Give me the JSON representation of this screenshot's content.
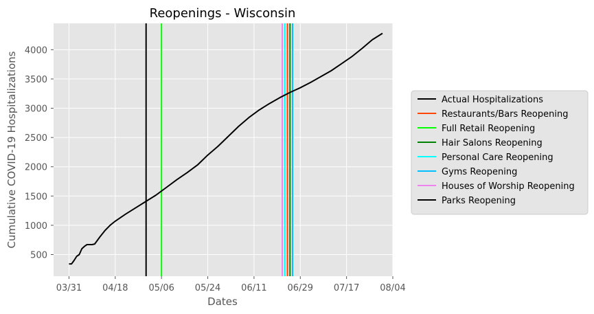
{
  "chart_data": {
    "type": "line",
    "title": "Reopenings - Wisconsin",
    "xlabel": "Dates",
    "ylabel": "Cumulative COVID-19 Hospitalizations",
    "x_ticks": [
      "03/31",
      "04/18",
      "05/06",
      "05/24",
      "06/11",
      "06/29",
      "07/17",
      "08/04"
    ],
    "y_ticks": [
      500,
      1000,
      1500,
      2000,
      2500,
      3000,
      3500,
      4000
    ],
    "xlim": [
      "03/25",
      "08/04"
    ],
    "ylim": [
      130,
      4450
    ],
    "grid": true,
    "background": "#e5e5e5",
    "legend_position": "outside-right",
    "series": [
      {
        "name": "Actual Hospitalizations",
        "color": "#000000",
        "x": [
          "03/31",
          "04/01",
          "04/02",
          "04/03",
          "04/04",
          "04/05",
          "04/06",
          "04/07",
          "04/08",
          "04/09",
          "04/10",
          "04/12",
          "04/14",
          "04/16",
          "04/18",
          "04/22",
          "04/26",
          "04/30",
          "05/04",
          "05/08",
          "05/12",
          "05/16",
          "05/20",
          "05/24",
          "05/28",
          "06/01",
          "06/05",
          "06/09",
          "06/13",
          "06/17",
          "06/21",
          "06/25",
          "06/29",
          "07/03",
          "07/07",
          "07/11",
          "07/15",
          "07/19",
          "07/23",
          "07/27",
          "07/31"
        ],
        "y": [
          340,
          340,
          400,
          470,
          500,
          600,
          640,
          670,
          670,
          670,
          680,
          800,
          910,
          1000,
          1070,
          1190,
          1300,
          1410,
          1520,
          1650,
          1780,
          1900,
          2030,
          2200,
          2350,
          2520,
          2690,
          2840,
          2970,
          3080,
          3180,
          3270,
          3350,
          3440,
          3540,
          3640,
          3760,
          3880,
          4020,
          4170,
          4280
        ]
      }
    ],
    "vlines": [
      {
        "name": "Restaurants/Bars Reopening",
        "date": "06/24",
        "color": "#ff4500"
      },
      {
        "name": "Full Retail Reopening",
        "date": "05/06",
        "color": "#00ff00"
      },
      {
        "name": "Hair Salons Reopening",
        "date": "06/25",
        "color": "#008000"
      },
      {
        "name": "Personal Care Reopening",
        "date": "06/23",
        "color": "#00ffff"
      },
      {
        "name": "Gyms Reopening",
        "date": "06/26",
        "color": "#00bfff"
      },
      {
        "name": "Houses of Worship Reopening",
        "date": "06/22",
        "color": "#ee82ee"
      },
      {
        "name": "Parks Reopening",
        "date": "04/30",
        "color": "#000000"
      }
    ],
    "legend": [
      {
        "label": "Actual Hospitalizations",
        "color": "#000000"
      },
      {
        "label": "Restaurants/Bars Reopening",
        "color": "#ff4500"
      },
      {
        "label": "Full Retail Reopening",
        "color": "#00ff00"
      },
      {
        "label": "Hair Salons Reopening",
        "color": "#008000"
      },
      {
        "label": "Personal Care Reopening",
        "color": "#00ffff"
      },
      {
        "label": "Gyms Reopening",
        "color": "#00bfff"
      },
      {
        "label": "Houses of Worship Reopening",
        "color": "#ee82ee"
      },
      {
        "label": "Parks Reopening",
        "color": "#000000"
      }
    ]
  }
}
